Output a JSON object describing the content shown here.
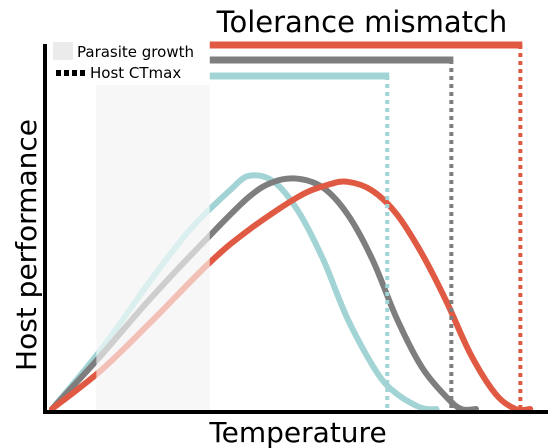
{
  "chart_data": {
    "type": "line",
    "title": "Tolerance mismatch",
    "xlabel": "Temperature",
    "ylabel": "Host performance",
    "xlim": [
      0,
      100
    ],
    "ylim": [
      0,
      100
    ],
    "grid": false,
    "legend_placement": "top-left",
    "legend": [
      {
        "label": "Parasite growth",
        "symbol": "shaded-region",
        "color": "#ebebeb"
      },
      {
        "label": "Host CTmax",
        "symbol": "dotted-line",
        "color": "#000000"
      }
    ],
    "parasite_growth_range": [
      9,
      32
    ],
    "series": [
      {
        "color": "#a3d4d5",
        "x": [
          0,
          10,
          20,
          28,
          36,
          40,
          45,
          50,
          55,
          60,
          66,
          70,
          74,
          76,
          78
        ],
        "y": [
          0,
          20,
          43,
          60,
          73,
          78,
          76,
          66,
          50,
          30,
          12,
          5,
          1,
          0,
          0
        ],
        "ctmax": 68,
        "tolerance_bar": [
          32,
          68
        ]
      },
      {
        "color": "#7e7e7e",
        "x": [
          0,
          10,
          20,
          32,
          40,
          45,
          50,
          55,
          60,
          65,
          70,
          75,
          80,
          83,
          86
        ],
        "y": [
          0,
          18,
          37,
          58,
          71,
          76,
          77,
          74,
          65,
          50,
          30,
          14,
          4,
          0,
          0
        ],
        "ctmax": 81,
        "tolerance_bar": [
          32,
          81
        ]
      },
      {
        "color": "#e05a43",
        "x": [
          0,
          10,
          20,
          32,
          40,
          50,
          56,
          60,
          65,
          70,
          75,
          80,
          85,
          90,
          94,
          97
        ],
        "y": [
          0,
          13,
          29,
          49,
          60,
          71,
          75,
          76,
          73,
          65,
          52,
          36,
          18,
          5,
          0,
          0
        ],
        "ctmax": 95,
        "tolerance_bar": [
          32,
          95
        ]
      }
    ]
  }
}
